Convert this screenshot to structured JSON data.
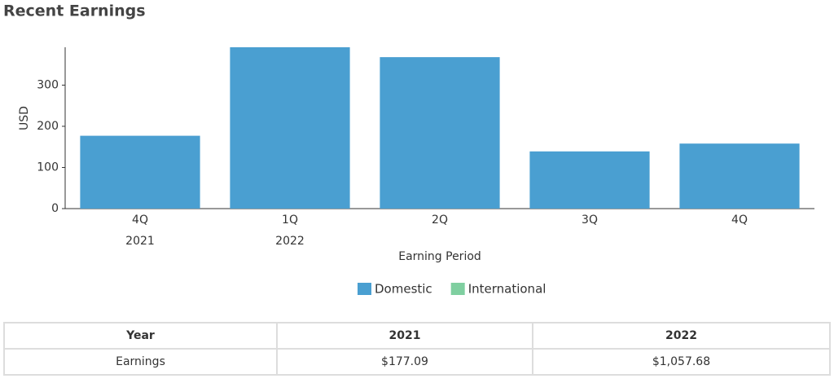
{
  "title": "Recent Earnings",
  "chart_data": {
    "type": "bar",
    "stacked": true,
    "categories": [
      "4Q",
      "1Q",
      "2Q",
      "3Q",
      "4Q"
    ],
    "years": [
      "2021",
      "2022",
      null,
      null,
      null
    ],
    "series": [
      {
        "name": "Domestic",
        "color": "#4a9fd1",
        "values": [
          177,
          392,
          368,
          139,
          158
        ]
      },
      {
        "name": "International",
        "color": "#7fcfa0",
        "values": [
          0,
          0,
          0,
          0,
          0
        ]
      }
    ],
    "x_label": "Earning Period",
    "y_label": "USD",
    "ylim": [
      0,
      392
    ],
    "yticks": [
      0,
      100,
      200,
      300
    ]
  },
  "table": {
    "header": [
      "Year",
      "2021",
      "2022"
    ],
    "rows": [
      [
        "Earnings",
        "$177.09",
        "$1,057.68"
      ]
    ]
  }
}
